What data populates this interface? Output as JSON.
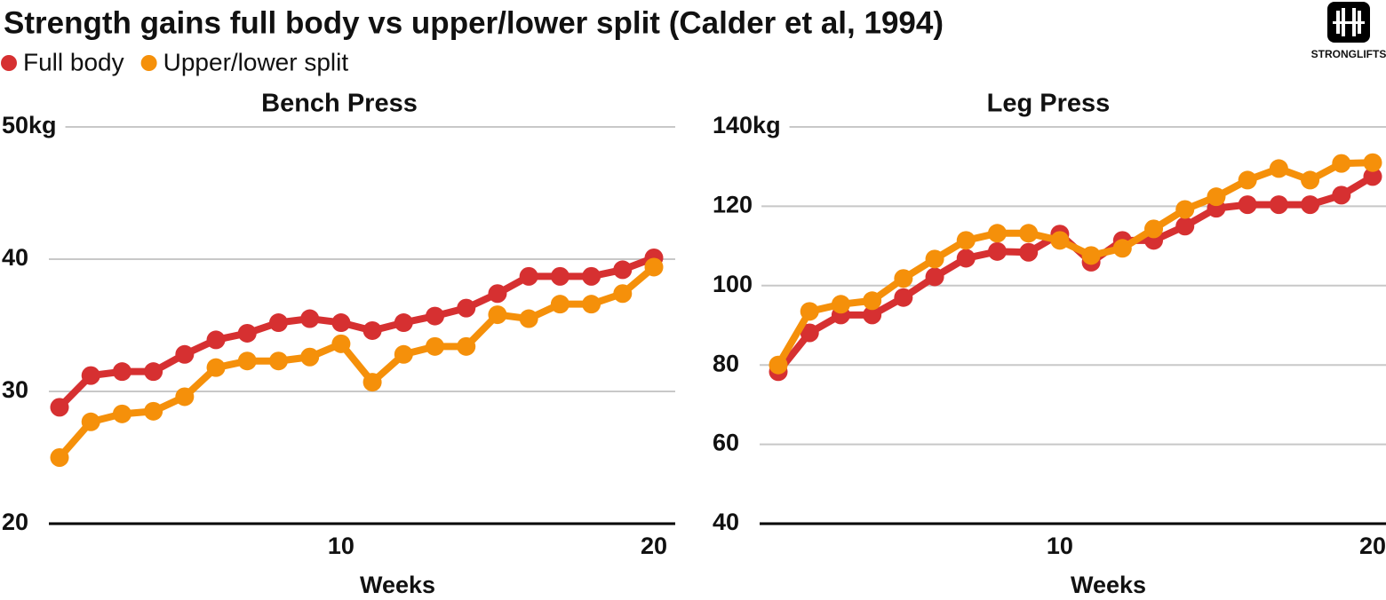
{
  "title": "Strength gains full body vs upper/lower split (Calder et al, 1994)",
  "logo": "STRONGLIFTS",
  "chart_data": [
    {
      "type": "line",
      "title": "Bench Press",
      "xlabel": "Weeks",
      "x": [
        1,
        2,
        3,
        4,
        5,
        6,
        7,
        8,
        9,
        10,
        11,
        12,
        13,
        14,
        15,
        16,
        17,
        18,
        19,
        20
      ],
      "xlim": [
        1,
        20
      ],
      "xticks": [
        10,
        20
      ],
      "ylim": [
        20,
        50
      ],
      "yticks": [
        20,
        30,
        40,
        {
          "value": 50,
          "label": "50kg"
        }
      ],
      "grid": true,
      "series": [
        {
          "name": "Full body",
          "color": "#d63031",
          "values": [
            28.8,
            31.2,
            31.5,
            31.5,
            32.8,
            33.9,
            34.4,
            35.2,
            35.5,
            35.2,
            34.6,
            35.2,
            35.7,
            36.3,
            37.4,
            38.7,
            38.7,
            38.7,
            39.2,
            40.1
          ]
        },
        {
          "name": "Upper/lower split",
          "color": "#f5900a",
          "values": [
            25.0,
            27.7,
            28.3,
            28.5,
            29.6,
            31.8,
            32.3,
            32.3,
            32.6,
            33.6,
            30.7,
            32.8,
            33.4,
            33.4,
            35.8,
            35.5,
            36.6,
            36.6,
            37.4,
            39.4
          ]
        }
      ]
    },
    {
      "type": "line",
      "title": "Leg Press",
      "xlabel": "Weeks",
      "x": [
        1,
        2,
        3,
        4,
        5,
        6,
        7,
        8,
        9,
        10,
        11,
        12,
        13,
        14,
        15,
        16,
        17,
        18,
        19,
        20
      ],
      "xlim": [
        1,
        20
      ],
      "xticks": [
        10,
        20
      ],
      "ylim": [
        40,
        140
      ],
      "yticks": [
        40,
        60,
        80,
        100,
        120,
        {
          "value": 140,
          "label": "140kg"
        }
      ],
      "grid": true,
      "series": [
        {
          "name": "Full body",
          "color": "#d63031",
          "values": [
            78.3,
            88.1,
            92.6,
            92.6,
            97.0,
            102.2,
            106.9,
            108.6,
            108.4,
            113.0,
            105.9,
            111.4,
            111.4,
            115.0,
            119.5,
            120.4,
            120.4,
            120.4,
            122.8,
            127.5
          ]
        },
        {
          "name": "Upper/lower split",
          "color": "#f5900a",
          "values": [
            80.0,
            93.5,
            95.3,
            96.2,
            101.8,
            106.7,
            111.4,
            113.2,
            113.2,
            111.4,
            107.6,
            109.4,
            114.3,
            119.2,
            122.4,
            126.6,
            129.5,
            126.6,
            130.8,
            131.0
          ]
        }
      ]
    }
  ]
}
